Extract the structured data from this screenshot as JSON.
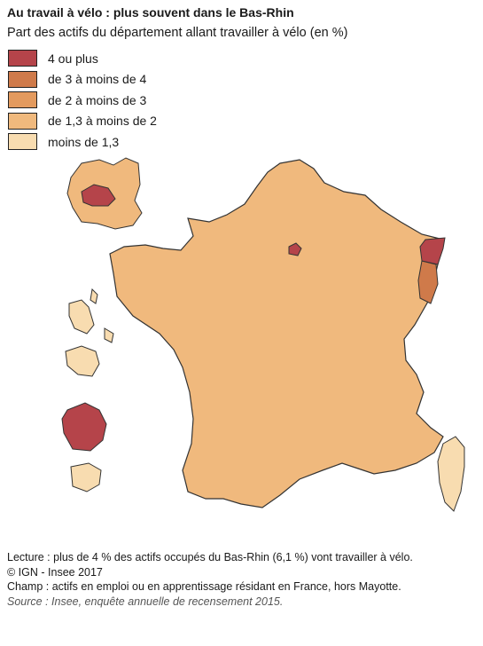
{
  "title": "Au travail à vélo : plus souvent dans le Bas-Rhin",
  "subtitle": "Part des actifs du département allant travailler à vélo (en %)",
  "legend": [
    {
      "label": "4 ou plus",
      "color": "#b5444a"
    },
    {
      "label": "de 3 à moins de 4",
      "color": "#cf7a4a"
    },
    {
      "label": "de 2 à moins de 3",
      "color": "#e39a5e"
    },
    {
      "label": "de 1,3 à moins de 2",
      "color": "#f0b97d"
    },
    {
      "label": "moins de 1,3",
      "color": "#f8dcb0"
    }
  ],
  "map_regions": {
    "france_metro": {
      "class": "de 1,3 à moins de 2"
    },
    "bas_rhin": {
      "class": "4 ou plus"
    },
    "haut_rhin": {
      "class": "de 3 à moins de 4"
    },
    "paris": {
      "class": "4 ou plus"
    },
    "guadeloupe": {
      "class": "4 ou plus"
    }
  },
  "footer": {
    "lecture": "Lecture : plus de 4 % des actifs occupés du Bas-Rhin (6,1 %) vont travailler à vélo.",
    "copyright": "© IGN - Insee 2017",
    "champ": "Champ : actifs en emploi ou en apprentissage résidant en France, hors Mayotte.",
    "source": "Source : Insee, enquête annuelle de recensement 2015."
  }
}
